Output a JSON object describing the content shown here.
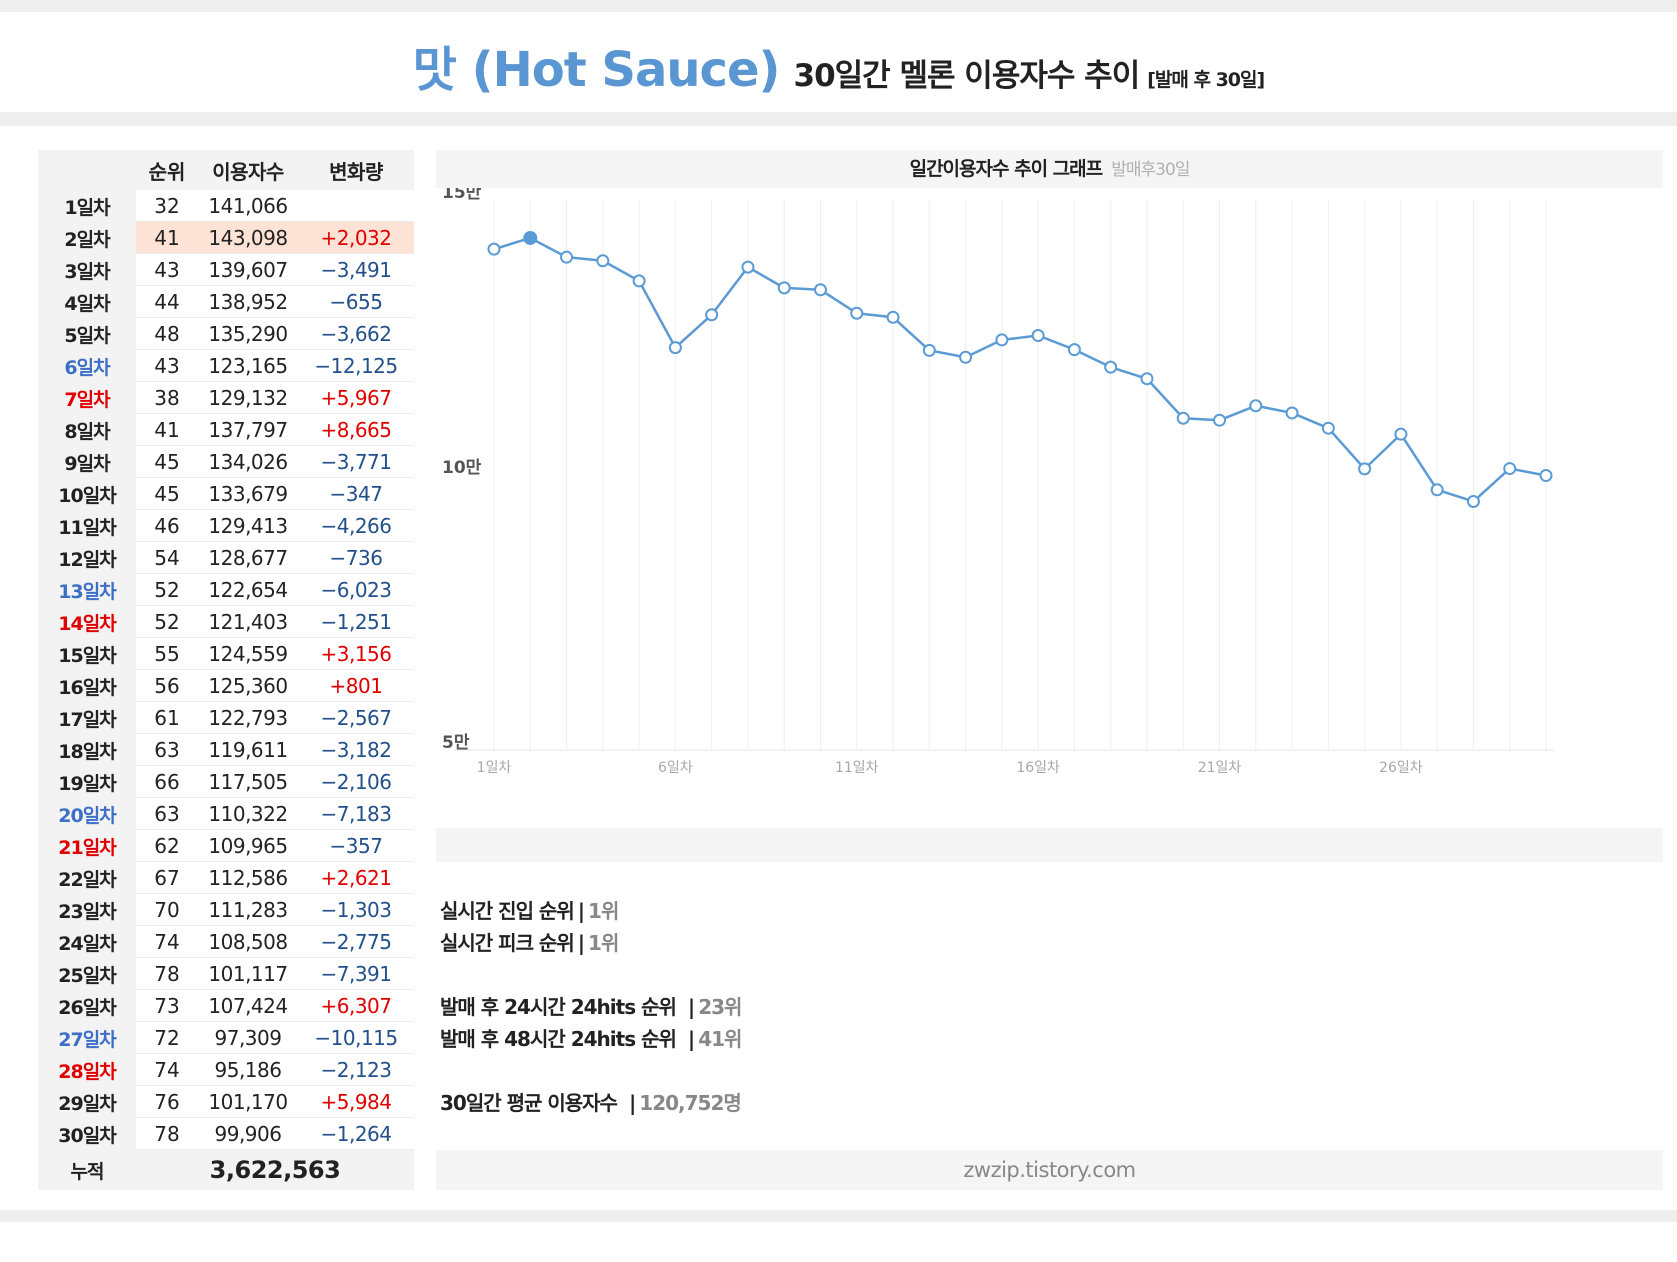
{
  "header": {
    "title_main": "맛 (Hot Sauce)",
    "title_sub": "30일간 멜론 이용자수 추이",
    "title_note": "[발매 후 30일]"
  },
  "table": {
    "headers": {
      "day": "",
      "rank": "순위",
      "users": "이용자수",
      "change": "변화량"
    },
    "rows": [
      {
        "day": "1일차",
        "rank": "32",
        "users": "141,066",
        "change": ""
      },
      {
        "day": "2일차",
        "rank": "41",
        "users": "143,098",
        "change": "+2,032"
      },
      {
        "day": "3일차",
        "rank": "43",
        "users": "139,607",
        "change": "−3,491"
      },
      {
        "day": "4일차",
        "rank": "44",
        "users": "138,952",
        "change": "−655"
      },
      {
        "day": "5일차",
        "rank": "48",
        "users": "135,290",
        "change": "−3,662"
      },
      {
        "day": "6일차",
        "rank": "43",
        "users": "123,165",
        "change": "−12,125"
      },
      {
        "day": "7일차",
        "rank": "38",
        "users": "129,132",
        "change": "+5,967"
      },
      {
        "day": "8일차",
        "rank": "41",
        "users": "137,797",
        "change": "+8,665"
      },
      {
        "day": "9일차",
        "rank": "45",
        "users": "134,026",
        "change": "−3,771"
      },
      {
        "day": "10일차",
        "rank": "45",
        "users": "133,679",
        "change": "−347"
      },
      {
        "day": "11일차",
        "rank": "46",
        "users": "129,413",
        "change": "−4,266"
      },
      {
        "day": "12일차",
        "rank": "54",
        "users": "128,677",
        "change": "−736"
      },
      {
        "day": "13일차",
        "rank": "52",
        "users": "122,654",
        "change": "−6,023"
      },
      {
        "day": "14일차",
        "rank": "52",
        "users": "121,403",
        "change": "−1,251"
      },
      {
        "day": "15일차",
        "rank": "55",
        "users": "124,559",
        "change": "+3,156"
      },
      {
        "day": "16일차",
        "rank": "56",
        "users": "125,360",
        "change": "+801"
      },
      {
        "day": "17일차",
        "rank": "61",
        "users": "122,793",
        "change": "−2,567"
      },
      {
        "day": "18일차",
        "rank": "63",
        "users": "119,611",
        "change": "−3,182"
      },
      {
        "day": "19일차",
        "rank": "66",
        "users": "117,505",
        "change": "−2,106"
      },
      {
        "day": "20일차",
        "rank": "63",
        "users": "110,322",
        "change": "−7,183"
      },
      {
        "day": "21일차",
        "rank": "62",
        "users": "109,965",
        "change": "−357"
      },
      {
        "day": "22일차",
        "rank": "67",
        "users": "112,586",
        "change": "+2,621"
      },
      {
        "day": "23일차",
        "rank": "70",
        "users": "111,283",
        "change": "−1,303"
      },
      {
        "day": "24일차",
        "rank": "74",
        "users": "108,508",
        "change": "−2,775"
      },
      {
        "day": "25일차",
        "rank": "78",
        "users": "101,117",
        "change": "−7,391"
      },
      {
        "day": "26일차",
        "rank": "73",
        "users": "107,424",
        "change": "+6,307"
      },
      {
        "day": "27일차",
        "rank": "72",
        "users": "97,309",
        "change": "−10,115"
      },
      {
        "day": "28일차",
        "rank": "74",
        "users": "95,186",
        "change": "−2,123"
      },
      {
        "day": "29일차",
        "rank": "76",
        "users": "101,170",
        "change": "+5,984"
      },
      {
        "day": "30일차",
        "rank": "78",
        "users": "99,906",
        "change": "−1,264"
      }
    ],
    "total_label": "누적",
    "total_value": "3,622,563"
  },
  "chart_title": {
    "main": "일간이용자수 추이 그래프",
    "note": "발매후30일"
  },
  "chart_data": {
    "type": "line",
    "title": "",
    "xlabel": "",
    "ylabel": "",
    "x": [
      1,
      2,
      3,
      4,
      5,
      6,
      7,
      8,
      9,
      10,
      11,
      12,
      13,
      14,
      15,
      16,
      17,
      18,
      19,
      20,
      21,
      22,
      23,
      24,
      25,
      26,
      27,
      28,
      29,
      30
    ],
    "x_tick_values": [
      1,
      6,
      11,
      16,
      21,
      26
    ],
    "x_tick_labels": [
      "1일차",
      "6일차",
      "11일차",
      "16일차",
      "21일차",
      "26일차"
    ],
    "y_tick_values": [
      50000,
      100000,
      150000
    ],
    "y_tick_labels": [
      "5만",
      "10만",
      "15만"
    ],
    "ylim": [
      50000,
      150000
    ],
    "grid": "vertical",
    "legend": "none",
    "series": [
      {
        "values": [
          141066,
          143098,
          139607,
          138952,
          135290,
          123165,
          129132,
          137797,
          134026,
          133679,
          129413,
          128677,
          122654,
          121403,
          124559,
          125360,
          122793,
          119611,
          117505,
          110322,
          109965,
          112586,
          111283,
          108508,
          101117,
          107424,
          97309,
          95186,
          101170,
          99906
        ]
      }
    ],
    "colors": {
      "line": "#5b9bd5",
      "marker_fill": "#ffffff",
      "highlight_fill": "#5b9bd5",
      "grid": "#efefef"
    },
    "highlight_index": 1
  },
  "stats": {
    "s1_label": "실시간 진입 순위",
    "s1_value": "1위",
    "s2_label": "실시간 피크 순위",
    "s2_value": "1위",
    "s3_label": "발매 후 24시간 24hits 순위",
    "s3_value": "23위",
    "s4_label": "발매 후 48시간 24hits 순위",
    "s4_value": "41위",
    "s5_label": "30일간 평균 이용자수",
    "s5_value": "120,752명",
    "sep": "|"
  },
  "site": "zwzip.tistory.com",
  "colors": {
    "accent": "#5a96d2",
    "weekend_sat": "#3c6fc6",
    "weekend_sun": "#e00000",
    "positive": "#e00000",
    "negative": "#234f8a",
    "highlight_row": "#fde3d6"
  }
}
